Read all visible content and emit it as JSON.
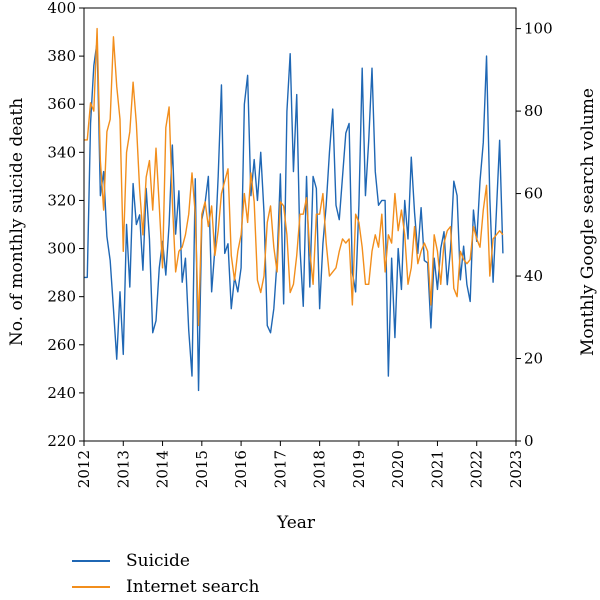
{
  "chart_data": {
    "type": "line",
    "title": "",
    "xlabel": "Year",
    "ylabel": "No. of monthly suicide death",
    "y2label": "Monthly Google search volume",
    "xlim": [
      2012,
      2023
    ],
    "ylim": [
      220,
      400
    ],
    "y2lim": [
      0,
      105
    ],
    "x_ticks": [
      "2012",
      "2013",
      "2014",
      "2015",
      "2016",
      "2017",
      "2018",
      "2019",
      "2020",
      "2021",
      "2022",
      "2023"
    ],
    "y_ticks": [
      "220",
      "240",
      "260",
      "280",
      "300",
      "320",
      "340",
      "360",
      "380",
      "400"
    ],
    "y2_ticks": [
      "0",
      "20",
      "40",
      "60",
      "80",
      "100"
    ],
    "grid": false,
    "legend_position": "bottom-left",
    "series": [
      {
        "name": "Suicide",
        "axis": "left",
        "color": "#1f67b4",
        "x_start": 2012.0,
        "x_step": 0.083333,
        "values": [
          288,
          288,
          352,
          376,
          386,
          322,
          332,
          305,
          295,
          275,
          254,
          282,
          256,
          310,
          284,
          327,
          310,
          314,
          291,
          325,
          304,
          265,
          270,
          292,
          303,
          289,
          310,
          343,
          306,
          324,
          286,
          296,
          266,
          247,
          329,
          241,
          312,
          319,
          330,
          282,
          300,
          330,
          368,
          298,
          302,
          275,
          288,
          282,
          292,
          360,
          372,
          322,
          337,
          320,
          340,
          315,
          268,
          265,
          275,
          295,
          331,
          277,
          357,
          381,
          332,
          364,
          300,
          276,
          330,
          284,
          330,
          325,
          275,
          302,
          318,
          340,
          358,
          318,
          312,
          330,
          348,
          352,
          290,
          282,
          318,
          375,
          322,
          345,
          375,
          332,
          318,
          320,
          320,
          247,
          296,
          263,
          300,
          283,
          320,
          304,
          338,
          315,
          298,
          317,
          295,
          294,
          267,
          296,
          283,
          300,
          307,
          285,
          300,
          328,
          322,
          287,
          301,
          285,
          278,
          316,
          303,
          328,
          344,
          380,
          321,
          286,
          315,
          345,
          298
        ]
      },
      {
        "name": "Internet search",
        "axis": "right",
        "color": "#f28e1c",
        "x_start": 2012.0,
        "x_step": 0.083333,
        "values": [
          73,
          73,
          82,
          80,
          100,
          68,
          56,
          75,
          78,
          98,
          86,
          78,
          46,
          70,
          75,
          87,
          77,
          61,
          50,
          64,
          68,
          56,
          71,
          57,
          42,
          76,
          81,
          58,
          41,
          46,
          47,
          50,
          55,
          65,
          55,
          28,
          55,
          58,
          52,
          57,
          45,
          51,
          60,
          63,
          66,
          45,
          39,
          46,
          50,
          60,
          53,
          65,
          58,
          39,
          36,
          40,
          53,
          57,
          47,
          41,
          58,
          57,
          50,
          36,
          38,
          45,
          55,
          55,
          59,
          46,
          38,
          55,
          55,
          60,
          48,
          40,
          41,
          42,
          46,
          49,
          48,
          49,
          33,
          55,
          53,
          47,
          38,
          38,
          46,
          50,
          47,
          55,
          41,
          50,
          48,
          60,
          51,
          56,
          50,
          38,
          42,
          52,
          43,
          46,
          48,
          46,
          33,
          50,
          46,
          38,
          48,
          51,
          52,
          37,
          35,
          46,
          44,
          43,
          44,
          52,
          49,
          47,
          56,
          62,
          40,
          49,
          50,
          51,
          50
        ]
      }
    ]
  }
}
